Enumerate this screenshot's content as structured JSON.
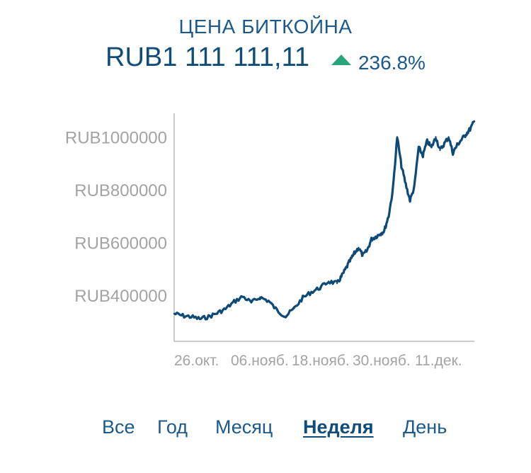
{
  "header": {
    "title": "ЦЕНА БИТКОЙНА",
    "price": "RUB1 111 111,11",
    "change": "236.8%",
    "change_color": "#2aa57a",
    "change_icon": "triangle-up-icon"
  },
  "chart_data": {
    "type": "line",
    "x_tick_labels": [
      "26.окт.",
      "06.нояб.",
      "18.нояб.",
      "30.нояб.",
      "11.дек."
    ],
    "y_ticks": [
      400000,
      600000,
      800000,
      1000000
    ],
    "y_tick_labels": [
      "RUB400000",
      "RUB600000",
      "RUB800000",
      "RUB1000000"
    ],
    "ylim": [
      225000,
      1090000
    ],
    "series": [
      {
        "color": "#0d4a78",
        "x": [
          0,
          2,
          4,
          6,
          8,
          10,
          12,
          14,
          16,
          18,
          20,
          22,
          24,
          26,
          28,
          30,
          32,
          34,
          36,
          38,
          39,
          40,
          41,
          42,
          43,
          44,
          45,
          46,
          47,
          48,
          49,
          50,
          51,
          52,
          53,
          54,
          55,
          56,
          57,
          58,
          59,
          60,
          61,
          62,
          63,
          64,
          65,
          66,
          67,
          68,
          69,
          70
        ],
        "values": [
          330000,
          322000,
          318000,
          310000,
          318000,
          332000,
          348000,
          375000,
          395000,
          372000,
          392000,
          378000,
          342000,
          320000,
          350000,
          390000,
          412000,
          428000,
          452000,
          445000,
          470000,
          500000,
          530000,
          558000,
          580000,
          550000,
          570000,
          612000,
          622000,
          632000,
          645000,
          700000,
          800000,
          1000000,
          890000,
          820000,
          760000,
          810000,
          960000,
          930000,
          985000,
          960000,
          1000000,
          950000,
          975000,
          1000000,
          940000,
          970000,
          990000,
          1010000,
          1030000,
          1060000
        ]
      }
    ]
  },
  "tabs": [
    {
      "label": "Все",
      "active": false
    },
    {
      "label": "Год",
      "active": false
    },
    {
      "label": "Месяц",
      "active": false
    },
    {
      "label": "Неделя",
      "active": true
    },
    {
      "label": "День",
      "active": false
    }
  ]
}
